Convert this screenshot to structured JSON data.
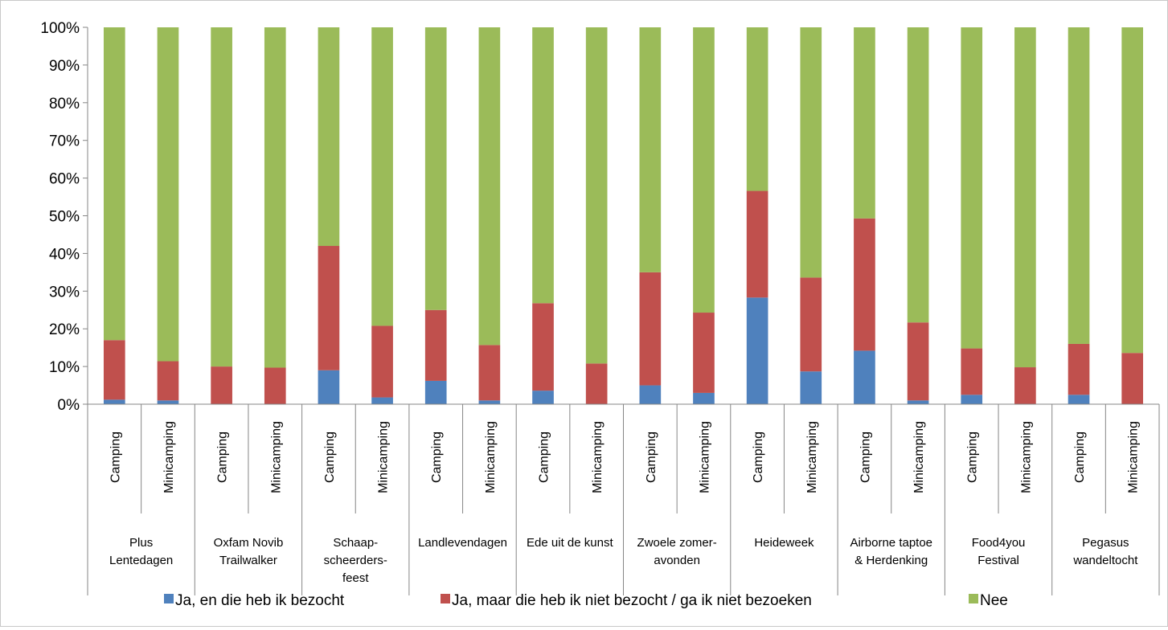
{
  "chart_data": {
    "type": "bar",
    "stacked": "percent",
    "ylim": [
      0,
      100
    ],
    "yticks": [
      "0%",
      "10%",
      "20%",
      "30%",
      "40%",
      "50%",
      "60%",
      "70%",
      "80%",
      "90%",
      "100%"
    ],
    "grid": false,
    "legend_position": "bottom",
    "groups": [
      {
        "name": [
          "Plus",
          "Lentedagen"
        ],
        "categories": [
          "Camping",
          "Minicamping"
        ]
      },
      {
        "name": [
          "Oxfam Novib",
          "Trailwalker"
        ],
        "categories": [
          "Camping",
          "Minicamping"
        ]
      },
      {
        "name": [
          "Schaap-",
          "scheerders-",
          "feest"
        ],
        "categories": [
          "Camping",
          "Minicamping"
        ]
      },
      {
        "name": [
          "Landlevendagen"
        ],
        "categories": [
          "Camping",
          "Minicamping"
        ]
      },
      {
        "name": [
          "Ede uit de kunst"
        ],
        "categories": [
          "Camping",
          "Minicamping"
        ]
      },
      {
        "name": [
          "Zwoele zomer-",
          "avonden"
        ],
        "categories": [
          "Camping",
          "Minicamping"
        ]
      },
      {
        "name": [
          "Heideweek"
        ],
        "categories": [
          "Camping",
          "Minicamping"
        ]
      },
      {
        "name": [
          "Airborne taptoe",
          "& Herdenking"
        ],
        "categories": [
          "Camping",
          "Minicamping"
        ]
      },
      {
        "name": [
          "Food4you",
          "Festival"
        ],
        "categories": [
          "Camping",
          "Minicamping"
        ]
      },
      {
        "name": [
          "Pegasus",
          "wandeltocht"
        ],
        "categories": [
          "Camping",
          "Minicamping"
        ]
      }
    ],
    "series": [
      {
        "name": "Ja, en die heb ik bezocht",
        "color": "#4f81bd",
        "values": [
          1.2,
          1.0,
          0.0,
          0.0,
          9.0,
          1.8,
          6.2,
          1.0,
          3.6,
          0.0,
          5.0,
          3.0,
          28.3,
          8.7,
          14.2,
          1.0,
          2.5,
          0.0,
          2.5,
          0.0
        ]
      },
      {
        "name": "Ja, maar die heb ik niet bezocht / ga ik niet bezoeken",
        "color": "#c0504d",
        "values": [
          15.8,
          10.4,
          10.0,
          9.7,
          33.0,
          19.0,
          18.8,
          14.7,
          23.2,
          10.8,
          30.0,
          21.3,
          28.3,
          24.9,
          35.1,
          20.7,
          12.3,
          9.8,
          13.5,
          13.6
        ]
      },
      {
        "name": "Nee",
        "color": "#9bbb59",
        "values": [
          83.0,
          88.6,
          90.0,
          90.3,
          58.0,
          79.2,
          75.0,
          84.3,
          73.2,
          89.2,
          65.0,
          75.7,
          43.4,
          66.4,
          50.7,
          78.3,
          85.2,
          90.2,
          84.0,
          86.4
        ]
      }
    ]
  }
}
